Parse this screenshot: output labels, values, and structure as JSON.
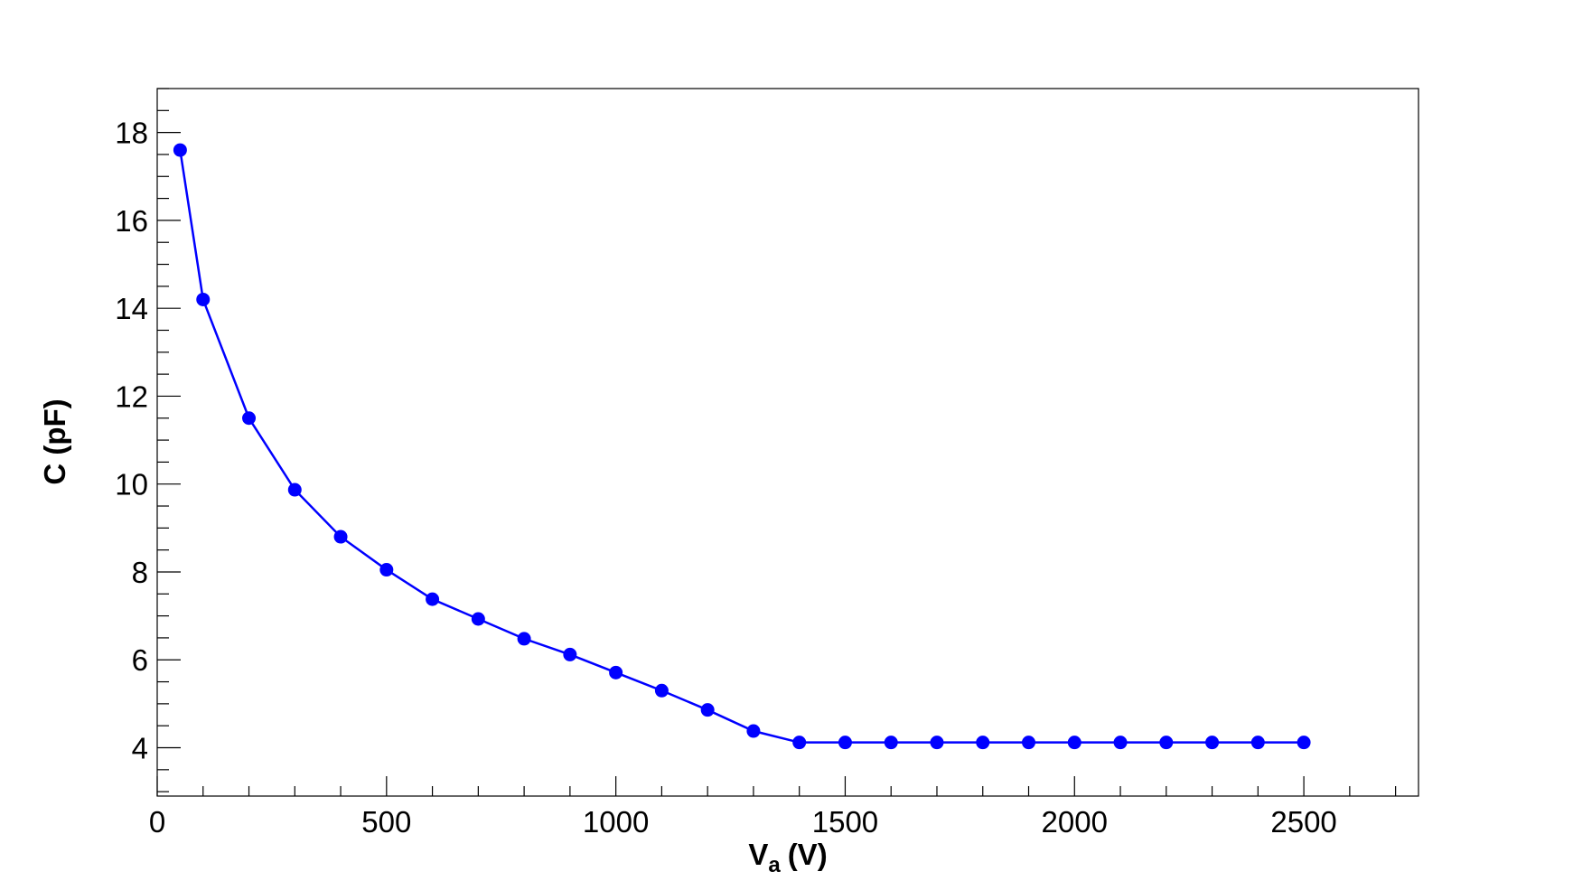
{
  "chart_data": {
    "type": "line",
    "title": "",
    "xlabel": {
      "main": "V",
      "sub": "a",
      "unit": "(V)"
    },
    "ylabel": "C (pF)",
    "xlim": [
      0,
      2750
    ],
    "ylim": [
      2.9,
      19
    ],
    "x_ticks": [
      0,
      500,
      1000,
      1500,
      2000,
      2500
    ],
    "x_tick_labels": [
      "0",
      "500",
      "1000",
      "1500",
      "2000",
      "2500"
    ],
    "x_minor_step": 100,
    "y_ticks": [
      4,
      6,
      8,
      10,
      12,
      14,
      16,
      18
    ],
    "y_tick_labels": [
      "4",
      "6",
      "8",
      "10",
      "12",
      "14",
      "16",
      "18"
    ],
    "y_minor_step": 0.5,
    "grid": false,
    "legend": "none",
    "series": [
      {
        "color": "#0000ff",
        "marker": "circle",
        "x": [
          50,
          100,
          200,
          300,
          400,
          500,
          600,
          700,
          800,
          900,
          1000,
          1100,
          1200,
          1300,
          1400,
          1500,
          1600,
          1700,
          1800,
          1900,
          2000,
          2100,
          2200,
          2300,
          2400,
          2500
        ],
        "y": [
          17.6,
          14.2,
          11.5,
          9.87,
          8.8,
          8.05,
          7.38,
          6.93,
          6.48,
          6.12,
          5.71,
          5.3,
          4.86,
          4.38,
          4.12,
          4.12,
          4.12,
          4.12,
          4.12,
          4.12,
          4.12,
          4.12,
          4.12,
          4.12,
          4.12,
          4.12
        ]
      }
    ]
  }
}
